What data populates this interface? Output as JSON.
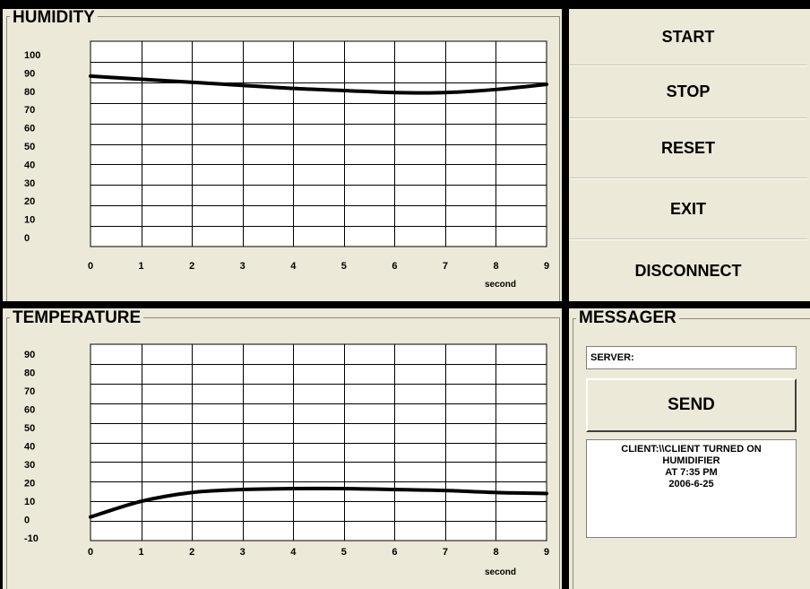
{
  "humidity": {
    "title": "HUMIDITY",
    "unit": "second",
    "x_ticks": [
      "0",
      "1",
      "2",
      "3",
      "4",
      "5",
      "6",
      "7",
      "8",
      "9"
    ],
    "y_ticks": [
      "100",
      "90",
      "80",
      "70",
      "60",
      "50",
      "40",
      "30",
      "20",
      "10",
      "0"
    ]
  },
  "temperature": {
    "title": "TEMPERATURE",
    "unit": "second",
    "x_ticks": [
      "0",
      "1",
      "2",
      "3",
      "4",
      "5",
      "6",
      "7",
      "8",
      "9"
    ],
    "y_ticks": [
      "90",
      "80",
      "70",
      "60",
      "50",
      "40",
      "30",
      "20",
      "10",
      "0",
      "-10"
    ]
  },
  "buttons": {
    "start": "START",
    "stop": "STOP",
    "reset": "RESET",
    "exit": "EXIT",
    "disconnect": "DISCONNECT"
  },
  "messager": {
    "title": "MESSAGER",
    "server_value": "SERVER:",
    "send_label": "SEND",
    "log_lines": [
      "CLIENT:\\\\CLIENT TURNED ON",
      "HUMIDIFIER",
      "AT 7:35 PM",
      "2006-6-25"
    ]
  },
  "chart_data": [
    {
      "type": "line",
      "title": "HUMIDITY",
      "xlabel": "second",
      "ylabel": "",
      "x": [
        0,
        1,
        2,
        3,
        4,
        5,
        6,
        7,
        8,
        9
      ],
      "series": [
        {
          "values": [
            83,
            81.5,
            80,
            78.5,
            77,
            76,
            75,
            75,
            76.5,
            79
          ]
        }
      ],
      "xlim": [
        0,
        9
      ],
      "ylim": [
        0,
        100
      ],
      "grid": true
    },
    {
      "type": "line",
      "title": "TEMPERATURE",
      "xlabel": "second",
      "ylabel": "",
      "x": [
        0,
        1,
        2,
        3,
        4,
        5,
        6,
        7,
        8,
        9
      ],
      "series": [
        {
          "values": [
            2,
            10,
            14.5,
            16,
            16.5,
            16.5,
            16,
            15.5,
            14.5,
            14
          ]
        }
      ],
      "xlim": [
        0,
        9
      ],
      "ylim": [
        -10,
        90
      ],
      "grid": true
    }
  ]
}
